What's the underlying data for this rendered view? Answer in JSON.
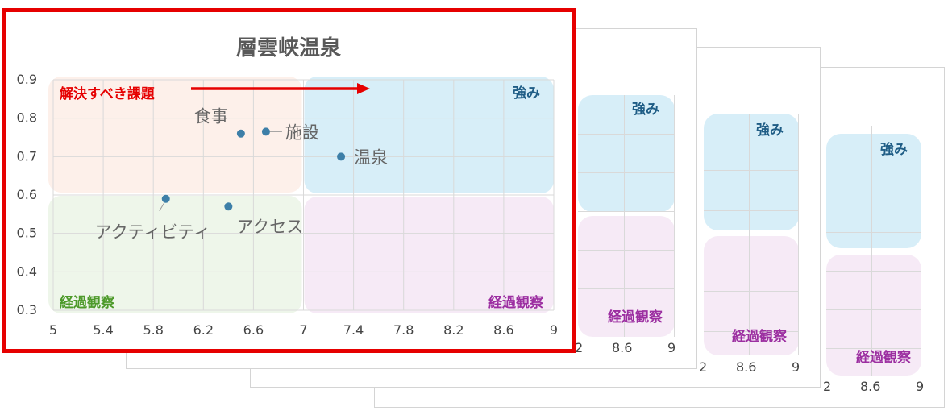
{
  "title": "層雲峡温泉",
  "chart_data": {
    "type": "scatter",
    "title": "層雲峡温泉",
    "xlim": [
      5,
      9
    ],
    "ylim": [
      0.3,
      0.9
    ],
    "x_ticks": [
      "5",
      "5.4",
      "5.8",
      "6.2",
      "6.6",
      "7",
      "7.4",
      "7.8",
      "8.2",
      "8.6",
      "9"
    ],
    "y_ticks": [
      "0.9",
      "0.8",
      "0.7",
      "0.6",
      "0.5",
      "0.4",
      "0.3"
    ],
    "grid": true,
    "points": [
      {
        "label": "食事",
        "x": 6.5,
        "y": 0.76
      },
      {
        "label": "施設",
        "x": 6.7,
        "y": 0.765
      },
      {
        "label": "温泉",
        "x": 7.3,
        "y": 0.7
      },
      {
        "label": "アクティビティ",
        "x": 5.9,
        "y": 0.59
      },
      {
        "label": "アクセス",
        "x": 6.4,
        "y": 0.57
      }
    ],
    "point_color": "#3d7fa8",
    "quadrant_labels": {
      "top_right": "強み",
      "bottom_right": "経過観察",
      "bottom_left": "経過観察"
    },
    "annotation": "解決すべき課題",
    "colors": {
      "quadrant_top_right": "#d7eef8",
      "quadrant_bottom_right": "#f6eaf6",
      "quadrant_top_left": "#fdf0ea",
      "quadrant_bottom_left": "#eef6ea",
      "annotation": "#e60000"
    }
  },
  "back_cards": {
    "strength_label": "強み",
    "watch_label": "経過観察",
    "tick_a": "8.6",
    "tick_b": "9",
    "tick_partial": "2"
  }
}
